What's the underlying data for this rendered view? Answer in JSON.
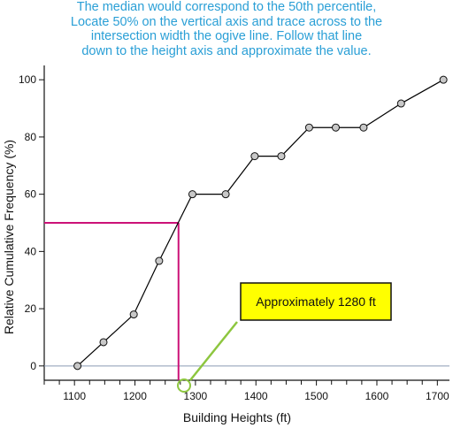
{
  "annotation": {
    "lines": [
      "The median would correspond to the 50th percentile,",
      "Locate 50% on the vertical axis and trace across to the",
      "intersection width the ogive line. Follow that line",
      "down to the height axis and approximate the value."
    ],
    "callout": "Approximately 1280 ft"
  },
  "chart_data": {
    "type": "line",
    "title": "",
    "xlabel": "Building Heights (ft)",
    "ylabel": "Relative Cumulative Frequency (%)",
    "xlim": [
      1050,
      1720
    ],
    "ylim": [
      -5,
      105
    ],
    "xticks": [
      1100,
      1200,
      1300,
      1400,
      1500,
      1600,
      1700
    ],
    "yticks": [
      0,
      20,
      40,
      60,
      80,
      100
    ],
    "series": [
      {
        "x": [
          1105,
          1148,
          1198,
          1240,
          1295,
          1350,
          1398,
          1442,
          1488,
          1532,
          1578,
          1640,
          1710
        ],
        "y": [
          0,
          8.3,
          18,
          36.7,
          60,
          60,
          73.3,
          73.3,
          83.3,
          83.3,
          83.3,
          91.7,
          100
        ]
      }
    ],
    "median_guide": {
      "y": 50,
      "x": 1272
    },
    "grid": false,
    "colors": {
      "line": "#000000",
      "marker_fill": "#c8c8c8",
      "guide": "#cc1177",
      "zero_line": "#8a9bb5",
      "callout_fill": "#ffff00",
      "pointer": "#8dc63f",
      "annotation_text": "#2a9fd6"
    }
  }
}
